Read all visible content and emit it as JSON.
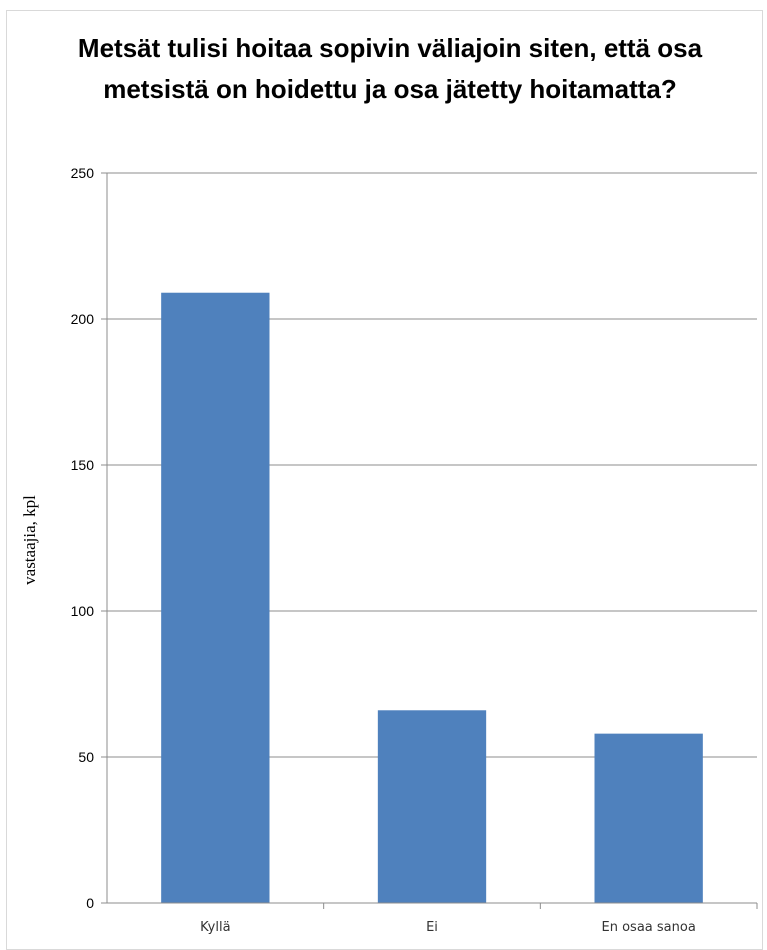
{
  "chart_data": {
    "type": "bar",
    "title": "Metsät tulisi hoitaa sopivin väliajoin siten, että osa metsistä on hoidettu ja osa jätetty hoitamatta?",
    "xlabel": "",
    "ylabel": "vastaajia, kpl",
    "categories": [
      "Kyllä",
      "Ei",
      "En osaa sanoa"
    ],
    "values": [
      209,
      66,
      58
    ],
    "ylim": [
      0,
      250
    ],
    "yticks": [
      0,
      50,
      100,
      150,
      200,
      250
    ],
    "grid": true,
    "legend": "none",
    "bar_color": "#4f81bd",
    "grid_color": "#8c8c8c"
  }
}
